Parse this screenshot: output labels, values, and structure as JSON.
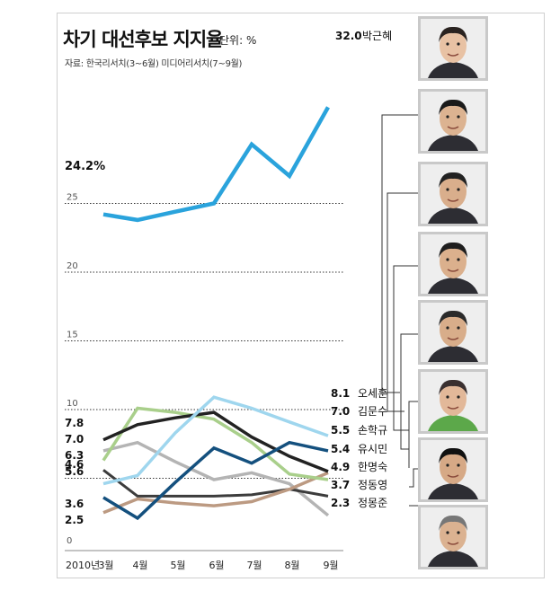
{
  "title": "차기 대선후보 지지율",
  "unit": "단위: %",
  "source": "자료: 한국리서치(3~6월) 미디어리서치(7~9월)",
  "chart_data": {
    "type": "line",
    "x": [
      "2010년 3월",
      "4월",
      "5월",
      "6월",
      "7월",
      "8월",
      "9월"
    ],
    "x_tick_labels": [
      "2010년",
      "3월",
      "4월",
      "5월",
      "6월",
      "7월",
      "8월",
      "9월"
    ],
    "ylim": [
      0,
      33
    ],
    "y_ticks": [
      "0",
      "5",
      "10",
      "15",
      "20",
      "25"
    ],
    "grid": "dotted horizontal",
    "series": [
      {
        "name": "박근혜",
        "color": "#2aa3dc",
        "width": 4.5,
        "values": [
          24.2,
          23.8,
          24.4,
          25.0,
          29.3,
          27.0,
          32.0
        ],
        "start_label": "24.2%",
        "end_label": "32.0"
      },
      {
        "name": "오세훈",
        "color": "#9fd6ee",
        "width": 3.5,
        "values": [
          4.6,
          5.2,
          8.3,
          10.9,
          10.1,
          9.1,
          8.1
        ],
        "start_label": "4.6",
        "end_label": "8.1"
      },
      {
        "name": "김문수",
        "color": "#14507e",
        "width": 3.5,
        "values": [
          3.6,
          2.1,
          4.7,
          7.2,
          6.1,
          7.6,
          7.0
        ],
        "start_label": "3.6",
        "end_label": "7.0"
      },
      {
        "name": "손학규",
        "color": "#222222",
        "width": 3.5,
        "values": [
          7.8,
          8.9,
          9.4,
          9.8,
          8.0,
          6.6,
          5.5
        ],
        "start_label": "7.8",
        "end_label": "5.5"
      },
      {
        "name": "유시민",
        "color": "#bc9a82",
        "width": 3.5,
        "values": [
          2.5,
          3.5,
          3.2,
          3.0,
          3.3,
          4.2,
          5.4
        ],
        "start_label": "2.5",
        "end_label": "5.4"
      },
      {
        "name": "한명숙",
        "color": "#a9cf8b",
        "width": 3.5,
        "values": [
          6.3,
          10.1,
          9.8,
          9.3,
          7.6,
          5.3,
          4.9
        ],
        "start_label": "6.3",
        "end_label": "4.9"
      },
      {
        "name": "정동영",
        "color": "#3c3c3c",
        "width": 3,
        "values": [
          5.6,
          3.7,
          3.7,
          3.7,
          3.8,
          4.2,
          3.7
        ],
        "start_label": "5.6",
        "end_label": "3.7"
      },
      {
        "name": "정몽준",
        "color": "#b4b4b4",
        "width": 3.5,
        "values": [
          7.0,
          7.6,
          6.2,
          4.9,
          5.4,
          4.6,
          2.3
        ],
        "start_label": "7.0",
        "end_label": "2.3"
      }
    ]
  }
}
